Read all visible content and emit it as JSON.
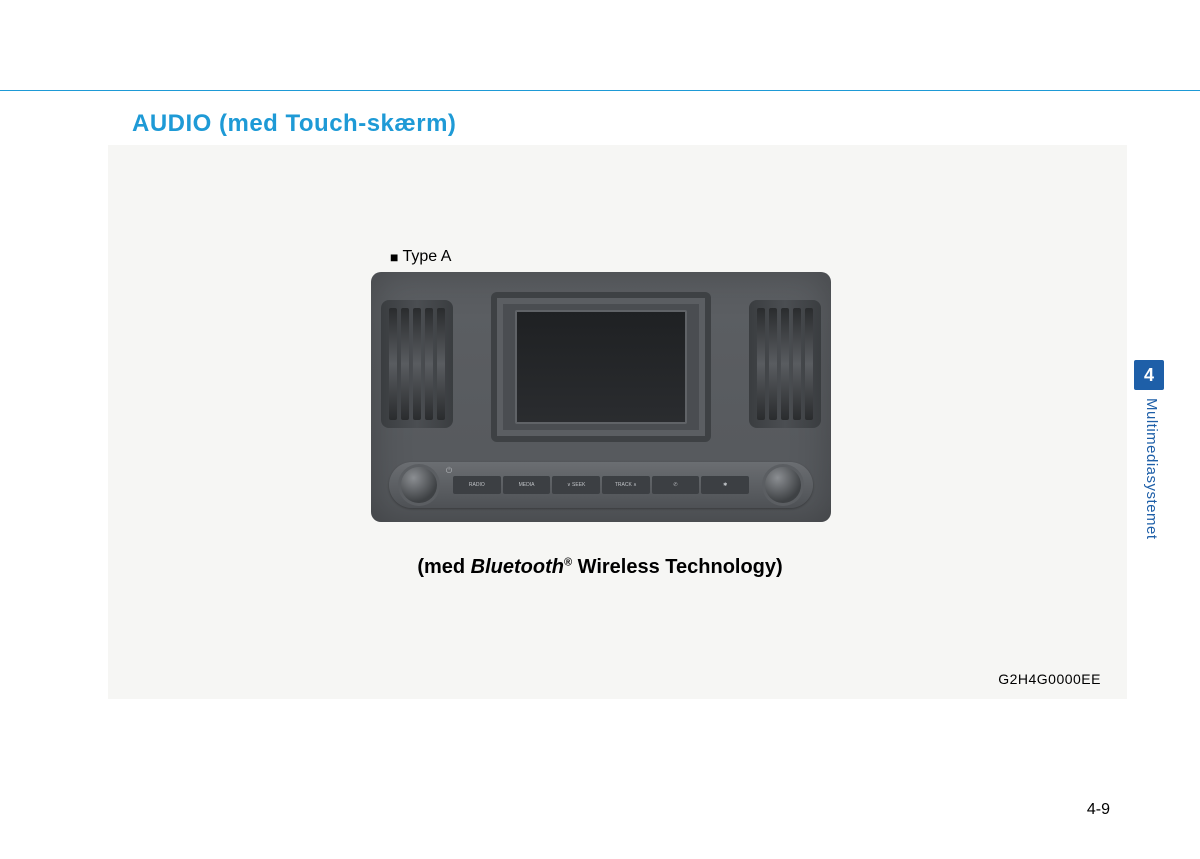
{
  "title": "AUDIO (med Touch-skærm)",
  "type_label": "Type A",
  "caption_prefix": "(med ",
  "caption_bt": "Bluetooth",
  "caption_reg": "®",
  "caption_suffix": " Wireless Technology)",
  "image_code": "G2H4G0000EE",
  "section_number": "4",
  "section_title": "Multimediasystemet",
  "page_number": "4-9",
  "buttons": [
    "RADIO",
    "MEDIA",
    "∨ SEEK",
    "TRACK ∧",
    "✆",
    "✱"
  ],
  "power_glyph": "⏻",
  "colors": {
    "accent": "#1e9ad6",
    "tab": "#1e5fa8",
    "panel_bg": "#f6f6f4"
  }
}
